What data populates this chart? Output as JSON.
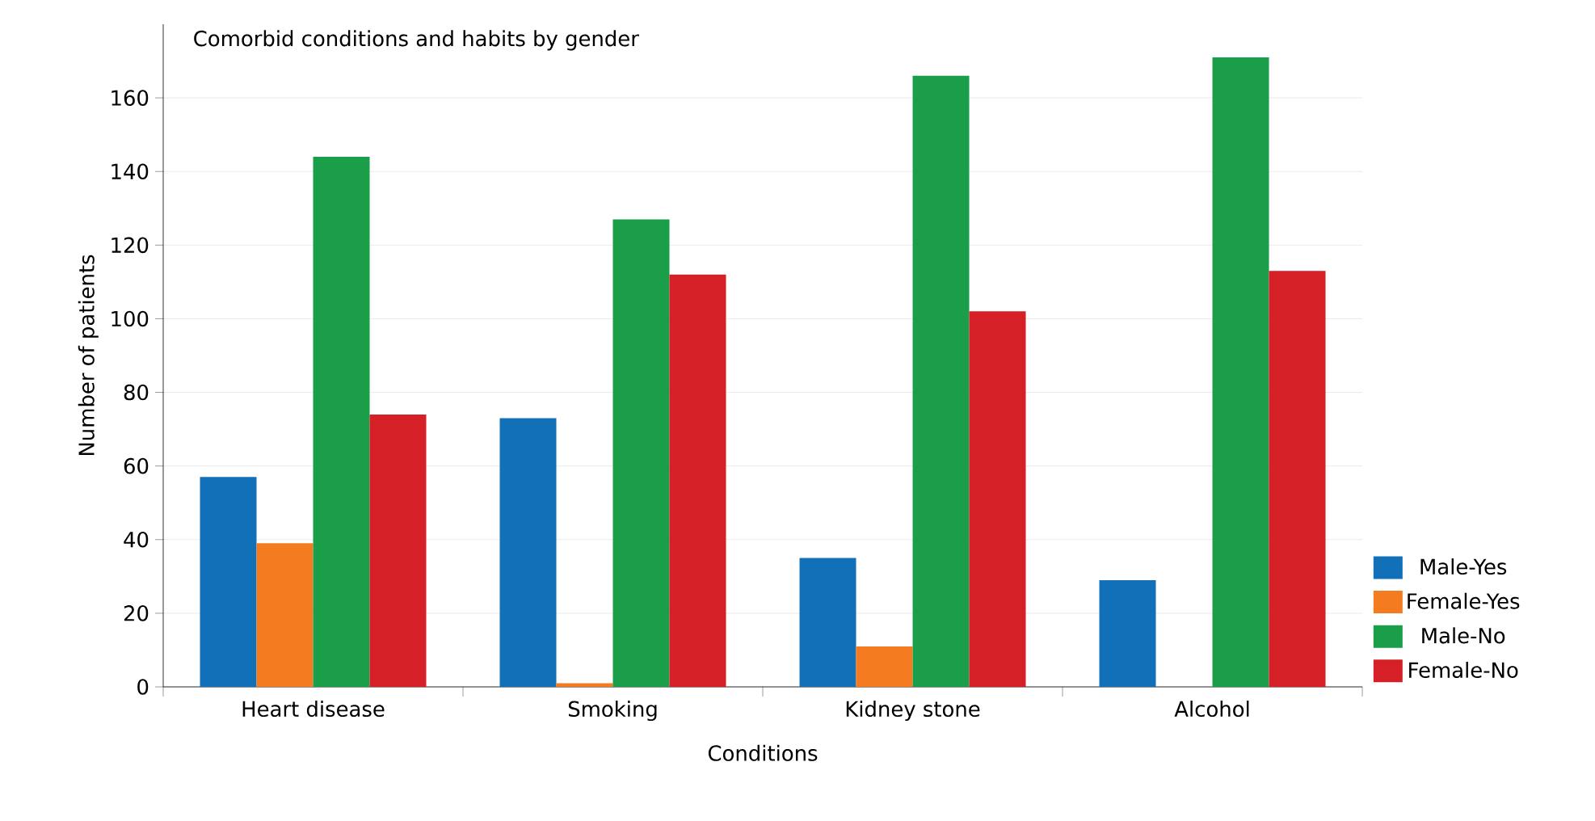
{
  "chart_data": {
    "type": "bar",
    "title": "Comorbid conditions and habits by gender",
    "xlabel": "Conditions",
    "ylabel": "Number of patients",
    "categories": [
      "Heart disease",
      "Smoking",
      "Kidney stone",
      "Alcohol"
    ],
    "series": [
      {
        "name": "Male-Yes",
        "color": "#1170b8",
        "values": [
          57,
          73,
          35,
          29
        ]
      },
      {
        "name": "Female-Yes",
        "color": "#f47b20",
        "values": [
          39,
          1,
          11,
          0
        ]
      },
      {
        "name": "Male-No",
        "color": "#1a9e4a",
        "values": [
          144,
          127,
          166,
          171
        ]
      },
      {
        "name": "Female-No",
        "color": "#d62027",
        "values": [
          74,
          112,
          102,
          113
        ]
      }
    ],
    "ylim": [
      0,
      180
    ],
    "yticks": [
      0,
      20,
      40,
      60,
      80,
      100,
      120,
      140,
      160
    ],
    "grid": "y",
    "legend": "right"
  }
}
